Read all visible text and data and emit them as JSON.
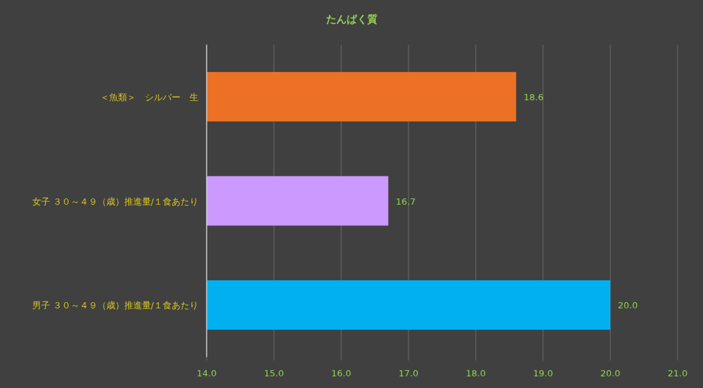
{
  "chart_data": {
    "type": "bar",
    "orientation": "horizontal",
    "title": "たんぱく質",
    "categories": [
      "＜魚類＞　シルバー　生",
      "女子 ３０～４９（歳）推進量/１食あたり",
      "男子 ３０～４９（歳）推進量/１食あたり"
    ],
    "values": [
      18.6,
      16.7,
      20.0
    ],
    "colors": [
      "#ed7124",
      "#cc99ff",
      "#00b0f0"
    ],
    "value_labels": [
      "18.6",
      "16.7",
      "20.0"
    ],
    "xlim": [
      14,
      21
    ],
    "xticks": [
      {
        "value": 14,
        "label": "14.0"
      },
      {
        "value": 15,
        "label": "15.0"
      },
      {
        "value": 16,
        "label": "16.0"
      },
      {
        "value": 17,
        "label": "17.0"
      },
      {
        "value": 18,
        "label": "18.0"
      },
      {
        "value": 19,
        "label": "19.0"
      },
      {
        "value": 20,
        "label": "20.0"
      },
      {
        "value": 21,
        "label": "21.0"
      }
    ],
    "grid": "x"
  }
}
